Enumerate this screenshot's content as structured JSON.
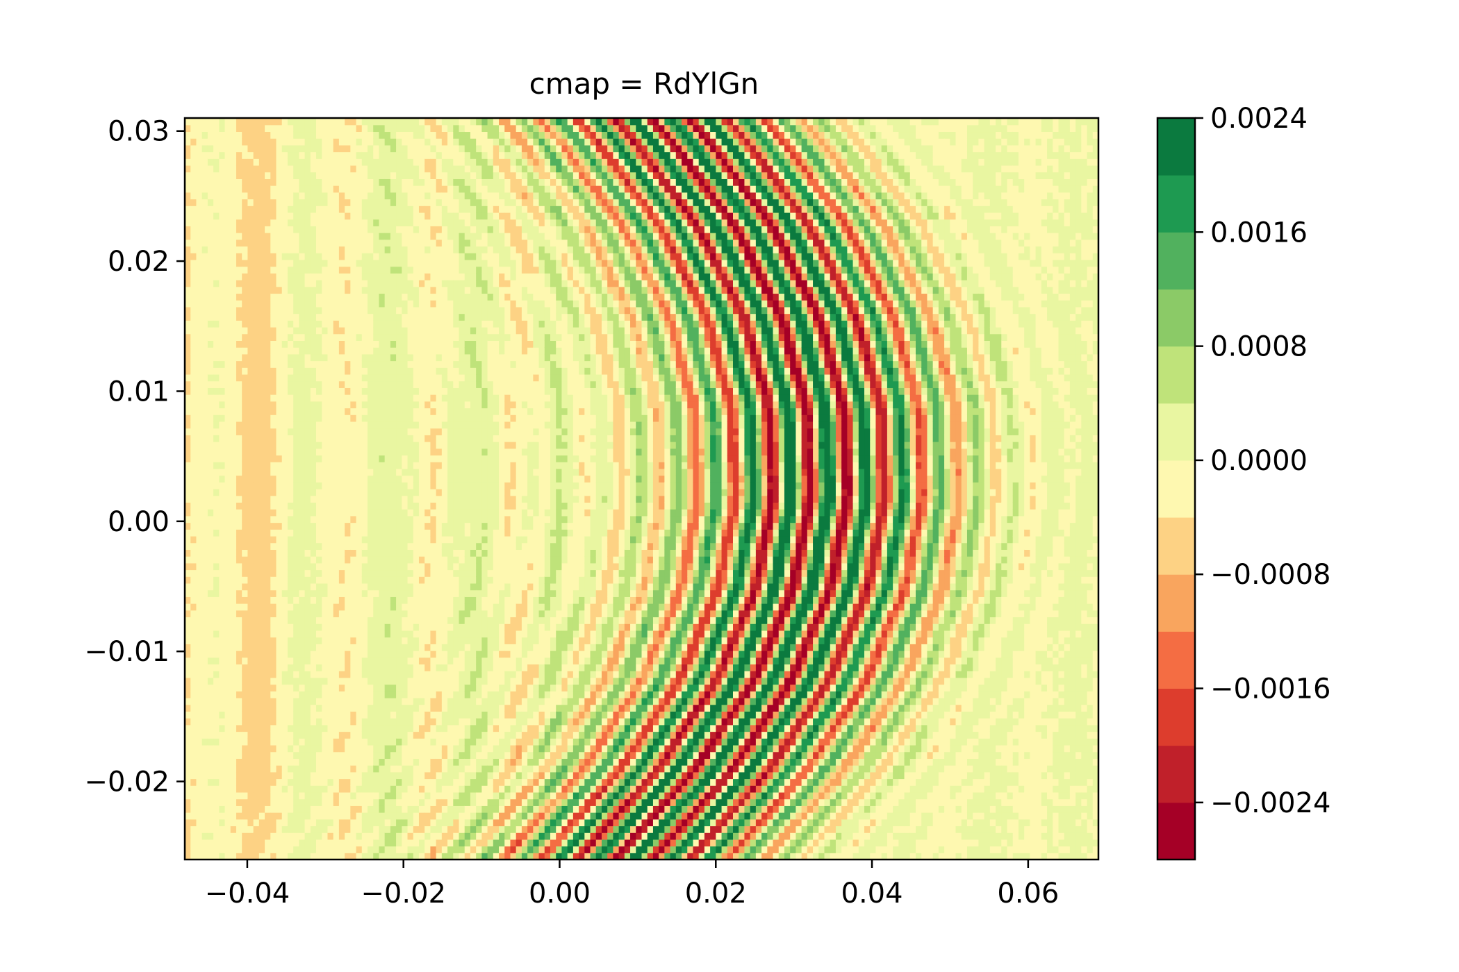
{
  "chart_data": {
    "type": "heatmap",
    "subtype": "filled-contour",
    "title": "cmap = RdYlGn",
    "xlabel": "",
    "ylabel": "",
    "xlim": [
      -0.048,
      0.069
    ],
    "ylim": [
      -0.026,
      0.031
    ],
    "x_ticks": [
      -0.04,
      -0.02,
      0.0,
      0.02,
      0.04,
      0.06
    ],
    "x_tick_labels": [
      "−0.04",
      "−0.02",
      "0.00",
      "0.02",
      "0.04",
      "0.06"
    ],
    "y_ticks": [
      -0.02,
      -0.01,
      0.0,
      0.01,
      0.02,
      0.03
    ],
    "y_tick_labels": [
      "−0.02",
      "−0.01",
      "0.00",
      "0.01",
      "0.02",
      "0.03"
    ],
    "colormap": "RdYlGn",
    "colorbar": {
      "vmin": -0.0028,
      "vmax": 0.0024,
      "levels": [
        -0.0028,
        -0.0024,
        -0.002,
        -0.0016,
        -0.0012,
        -0.0008,
        -0.0004,
        0.0,
        0.0004,
        0.0008,
        0.0012,
        0.0016,
        0.002,
        0.0024
      ],
      "colors": [
        "#a50026",
        "#c0202a",
        "#dd3d2d",
        "#f46d43",
        "#f9a55e",
        "#fdd284",
        "#fef8b0",
        "#e9f6a1",
        "#bfe37a",
        "#8bca67",
        "#51b15e",
        "#1e9a51",
        "#0b7a3f"
      ],
      "tick_values": [
        0.0024,
        0.0016,
        0.0008,
        0.0,
        -0.0008,
        -0.0016,
        -0.0024
      ],
      "tick_labels": [
        "0.0024",
        "0.0016",
        "0.0008",
        "0.0000",
        "−0.0008",
        "−0.0016",
        "−0.0024"
      ]
    },
    "grid": false,
    "field": {
      "description_fields": "interference fringes: vertical bands curving slightly right, strongest around x≈0.02–0.05",
      "fringe_spacing_x": 0.0048,
      "fringe_center_x": 0.034,
      "fringe_width_x": 0.018,
      "peak_amplitude": 0.0027,
      "curvature_center_y": 0.004
    }
  }
}
